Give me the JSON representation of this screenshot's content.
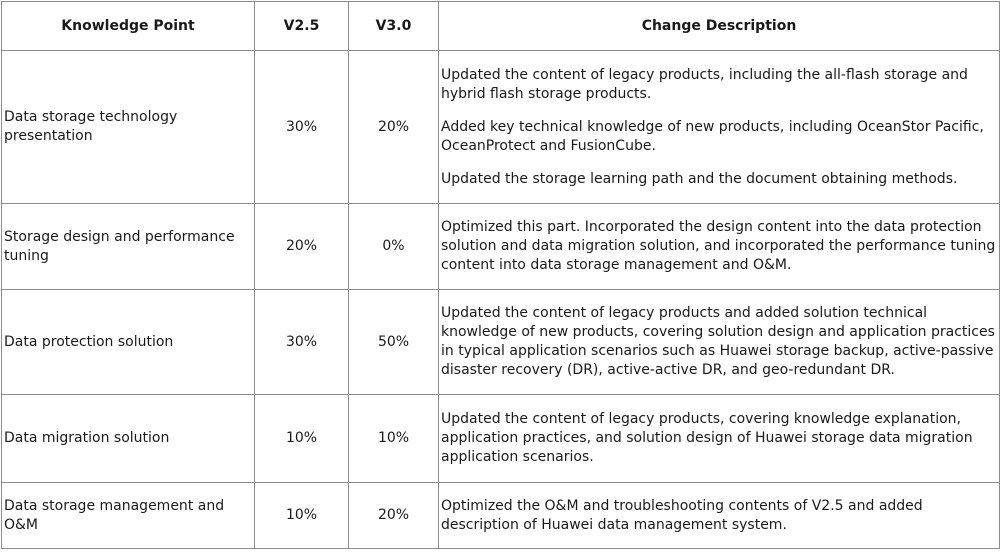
{
  "table": {
    "headers": [
      "Knowledge Point",
      "V2.5",
      "V3.0",
      "Change Description"
    ],
    "rows": [
      {
        "knowledge_point": "Data storage technology presentation",
        "v25": "30%",
        "v30": "20%",
        "description": [
          "Updated the content of legacy products, including the all-flash storage and hybrid flash storage products.",
          "Added key technical knowledge of new products, including OceanStor Pacific, OceanProtect and FusionCube.",
          "Updated the storage learning path and the document obtaining methods."
        ]
      },
      {
        "knowledge_point": "Storage design and performance tuning",
        "v25": "20%",
        "v30": "0%",
        "description": [
          "Optimized this part. Incorporated the design content into the data protection solution and data migration solution, and incorporated the performance tuning content into data storage management and O&M."
        ]
      },
      {
        "knowledge_point": "Data protection solution",
        "v25": "30%",
        "v30": "50%",
        "description": [
          "Updated the content of legacy products and added solution technical knowledge of new products, covering solution design and application practices in typical application scenarios such as Huawei storage backup, active-passive disaster recovery (DR), active-active DR, and geo-redundant DR."
        ]
      },
      {
        "knowledge_point": "Data migration solution",
        "v25": "10%",
        "v30": "10%",
        "description": [
          "Updated the content of legacy products, covering knowledge explanation, application practices, and solution design of Huawei storage data migration application scenarios."
        ]
      },
      {
        "knowledge_point": "Data storage management and O&M",
        "v25": "10%",
        "v30": "20%",
        "description": [
          "Optimized the O&M and troubleshooting contents of V2.5 and added description of Huawei data management system."
        ]
      }
    ]
  }
}
